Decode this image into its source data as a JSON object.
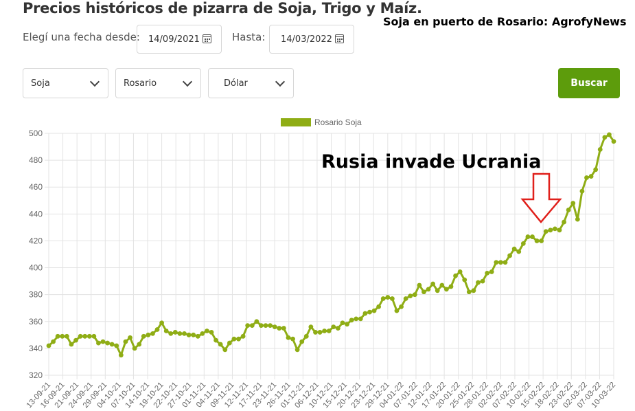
{
  "header": {
    "title": "Precios históricos de pizarra de Soja, Trigo y Maíz.",
    "corner_note": "Soja en puerto de Rosario: AgrofyNews"
  },
  "filters": {
    "from_label": "Elegí una fecha desde:",
    "from_value": "14/09/2021",
    "to_label": "Hasta:",
    "to_value": "14/03/2022",
    "product": "Soja",
    "port": "Rosario",
    "currency": "Dólar",
    "search_label": "Buscar"
  },
  "chart_data": {
    "type": "line",
    "legend": "Rosario Soja",
    "legend_position": "top-center",
    "series_color": "#8fad15",
    "grid": true,
    "ylim": [
      320,
      500
    ],
    "yticks": [
      320,
      340,
      360,
      380,
      400,
      420,
      440,
      460,
      480,
      500
    ],
    "x_ticks": [
      "13-09-21",
      "16-09-21",
      "21-09-21",
      "24-09-21",
      "29-09-21",
      "04-10-21",
      "07-10-21",
      "14-10-21",
      "19-10-21",
      "22-10-21",
      "27-10-21",
      "01-11-21",
      "04-11-21",
      "09-11-21",
      "12-11-21",
      "17-11-21",
      "23-11-21",
      "26-11-21",
      "01-12-21",
      "06-12-21",
      "10-12-21",
      "15-12-21",
      "20-12-21",
      "23-12-21",
      "29-12-21",
      "04-01-22",
      "07-01-22",
      "12-01-22",
      "17-01-22",
      "20-01-22",
      "25-01-22",
      "28-01-22",
      "02-02-22",
      "07-02-22",
      "10-02-22",
      "15-02-22",
      "18-02-22",
      "23-02-22",
      "02-03-22",
      "07-03-22",
      "10-03-22"
    ],
    "values": [
      342,
      345,
      349,
      349,
      349,
      343,
      346,
      349,
      349,
      349,
      349,
      344,
      345,
      344,
      343,
      342,
      335,
      345,
      348,
      340,
      343,
      349,
      350,
      351,
      354,
      359,
      353,
      351,
      352,
      351,
      351,
      350,
      350,
      349,
      351,
      353,
      352,
      346,
      343,
      339,
      344,
      347,
      347,
      349,
      357,
      357,
      360,
      357,
      357,
      357,
      356,
      355,
      355,
      348,
      347,
      339,
      345,
      349,
      356,
      352,
      352,
      353,
      353,
      356,
      355,
      359,
      358,
      361,
      362,
      362,
      366,
      367,
      368,
      371,
      377,
      378,
      377,
      368,
      371,
      377,
      379,
      380,
      387,
      382,
      384,
      388,
      383,
      387,
      384,
      386,
      394,
      397,
      391,
      382,
      383,
      389,
      390,
      396,
      397,
      404,
      404,
      404,
      409,
      414,
      412,
      418,
      423,
      423,
      420,
      420,
      427,
      428,
      429,
      428,
      434,
      443,
      448,
      436,
      457,
      467,
      468,
      473,
      488,
      497,
      499,
      494
    ],
    "annotation": "Rusia invade Ucrania"
  }
}
